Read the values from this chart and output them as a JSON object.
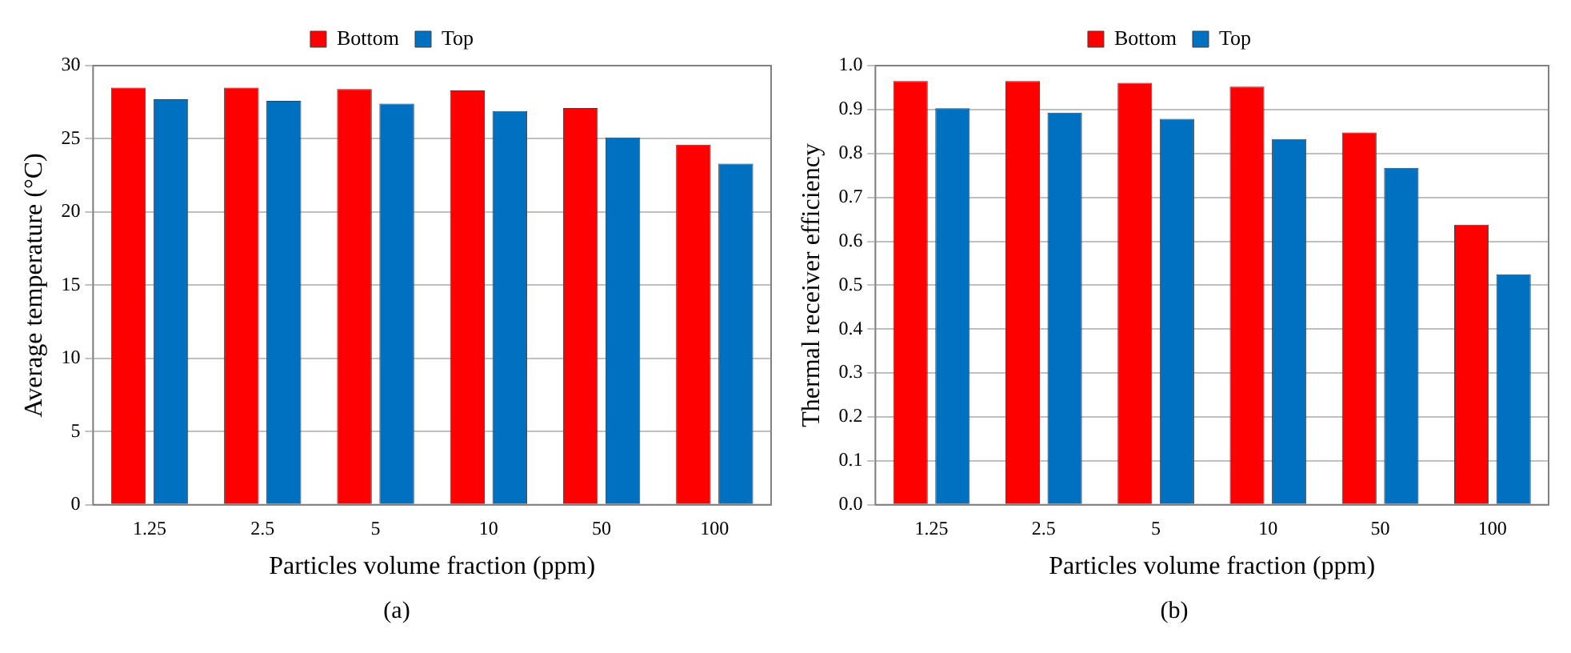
{
  "chart_data": [
    {
      "type": "bar",
      "categories": [
        "1.25",
        "2.5",
        "5",
        "10",
        "50",
        "100"
      ],
      "xlabel": "Particles volume fraction (ppm)",
      "ylabel": "Average temperature (°C)",
      "series": [
        {
          "name": "Bottom",
          "color": "#ff0000",
          "values": [
            28.5,
            28.5,
            28.4,
            28.3,
            27.1,
            24.6
          ]
        },
        {
          "name": "Top",
          "color": "#0070c0",
          "values": [
            27.7,
            27.6,
            27.4,
            26.9,
            25.1,
            23.3
          ]
        }
      ],
      "ylim": [
        0,
        30
      ],
      "yticks": [
        0,
        5,
        10,
        15,
        20,
        25,
        30
      ],
      "grid": "y",
      "legend": "top",
      "annotations": [
        "(a)"
      ]
    },
    {
      "type": "bar",
      "categories": [
        "1.25",
        "2.5",
        "5",
        "10",
        "50",
        "100"
      ],
      "xlabel": "Particles volume fraction (ppm)",
      "ylabel": "Thermal receiver efficiency",
      "series": [
        {
          "name": "Bottom",
          "color": "#ff0000",
          "values": [
            0.965,
            0.965,
            0.961,
            0.952,
            0.848,
            0.638
          ]
        },
        {
          "name": "Top",
          "color": "#0070c0",
          "values": [
            0.903,
            0.893,
            0.879,
            0.833,
            0.767,
            0.525
          ]
        }
      ],
      "ylim": [
        0,
        1
      ],
      "yticks": [
        {
          "value": 0,
          "label": "0.0"
        },
        0.1,
        0.2,
        0.3,
        0.4,
        0.5,
        0.6,
        0.7,
        0.8,
        0.9,
        {
          "value": 1,
          "label": "1.0"
        }
      ],
      "grid": "y",
      "legend": "top",
      "annotations": [
        "(b)"
      ]
    }
  ]
}
